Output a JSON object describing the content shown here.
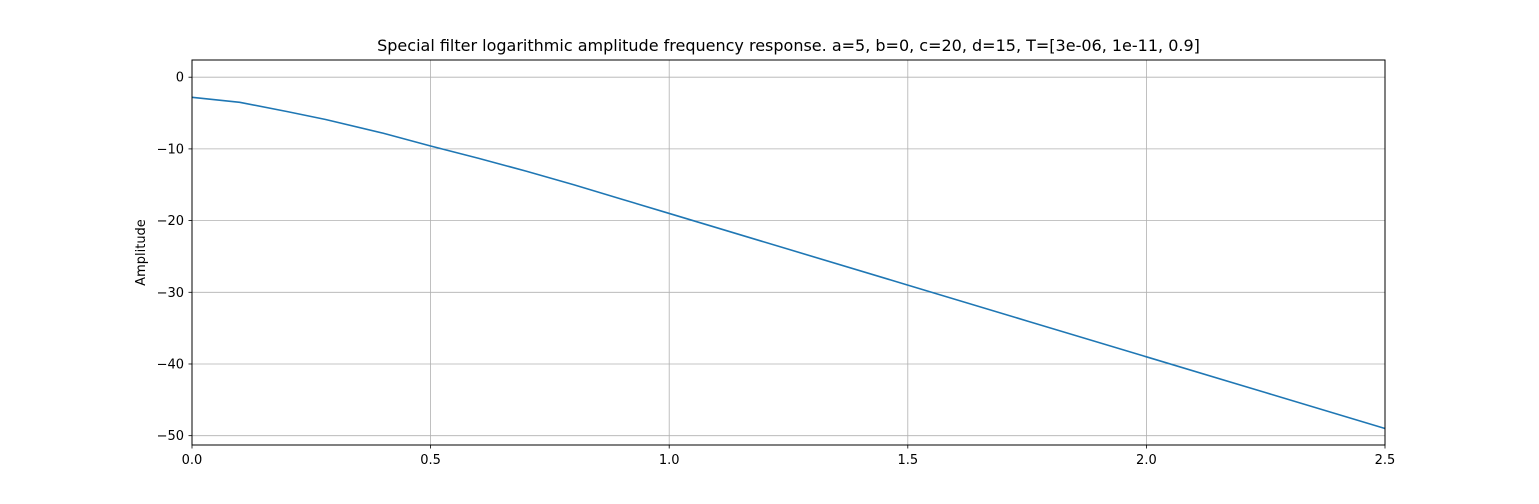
{
  "chart_data": {
    "type": "line",
    "title": "Special filter logarithmic amplitude frequency response. a=5, b=0, c=20, d=15, T=[3e-06, 1e-11, 0.9]",
    "xlabel": "",
    "ylabel": "Amplitude",
    "xlim": [
      0,
      2.5
    ],
    "ylim": [
      -51.3,
      2.4
    ],
    "grid": true,
    "x_ticks": [
      0.0,
      0.5,
      1.0,
      1.5,
      2.0,
      2.5
    ],
    "x_tick_labels": [
      "0.0",
      "0.5",
      "1.0",
      "1.5",
      "2.0",
      "2.5"
    ],
    "y_ticks": [
      0,
      -10,
      -20,
      -30,
      -40,
      -50
    ],
    "y_tick_labels": [
      "0",
      "−10",
      "−20",
      "−30",
      "−40",
      "−50"
    ],
    "series": [
      {
        "color": "#1f77b4",
        "x": [
          0.0,
          0.1,
          0.2,
          0.28,
          0.4,
          0.5,
          0.6,
          0.7,
          0.8,
          0.9,
          1.0,
          1.25,
          1.5,
          1.75,
          2.0,
          2.25,
          2.5
        ],
        "y": [
          -2.8,
          -3.5,
          -4.8,
          -5.9,
          -7.8,
          -9.6,
          -11.3,
          -13.1,
          -15.0,
          -17.0,
          -19.0,
          -24.0,
          -29.0,
          -34.0,
          -39.0,
          -44.0,
          -49.0
        ]
      }
    ]
  }
}
